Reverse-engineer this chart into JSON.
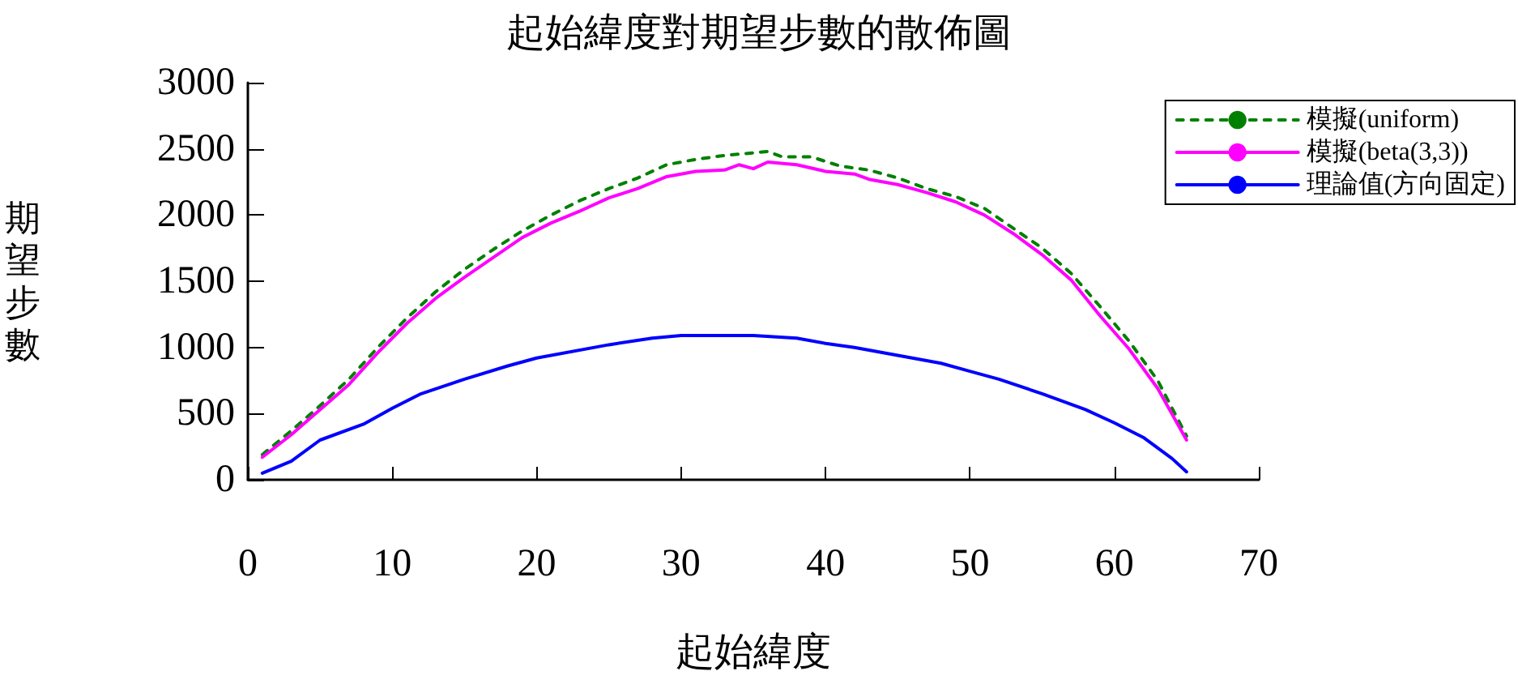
{
  "chart_data": {
    "type": "line",
    "title": "起始緯度對期望步數的散佈圖",
    "xlabel": "起始緯度",
    "ylabel": "期望步數",
    "xlim": [
      0,
      70
    ],
    "xticks": [
      0,
      10,
      20,
      30,
      40,
      50,
      60,
      70
    ],
    "ylim": [
      0,
      3000
    ],
    "yticks": [
      0,
      500,
      1000,
      1500,
      2000,
      2500,
      3000
    ],
    "grid": false,
    "legend": "top right",
    "marker": "none",
    "series": [
      {
        "name": "模擬(uniform)",
        "color": "#008000",
        "line_style": "dashed",
        "x": [
          1,
          3,
          5,
          7,
          9,
          11,
          13,
          15,
          17,
          19,
          21,
          23,
          25,
          27,
          29,
          31,
          33,
          35,
          36,
          37,
          39,
          41,
          43,
          45,
          47,
          49,
          51,
          53,
          55,
          57,
          59,
          61,
          63,
          65
        ],
        "values": [
          190,
          370,
          560,
          760,
          1000,
          1220,
          1420,
          1590,
          1740,
          1880,
          2000,
          2110,
          2200,
          2280,
          2380,
          2420,
          2450,
          2470,
          2480,
          2440,
          2440,
          2370,
          2340,
          2280,
          2200,
          2140,
          2050,
          1900,
          1750,
          1560,
          1310,
          1050,
          750,
          330
        ]
      },
      {
        "name": "模擬(beta(3,3))",
        "color": "#ff00ff",
        "line_style": "solid",
        "x": [
          1,
          3,
          5,
          7,
          9,
          11,
          13,
          15,
          17,
          19,
          21,
          23,
          25,
          27,
          29,
          31,
          33,
          34,
          35,
          36,
          38,
          40,
          42,
          43,
          45,
          47,
          49,
          51,
          53,
          55,
          57,
          59,
          61,
          63,
          65
        ],
        "values": [
          170,
          340,
          530,
          720,
          960,
          1180,
          1370,
          1530,
          1680,
          1830,
          1940,
          2030,
          2130,
          2200,
          2290,
          2330,
          2340,
          2380,
          2350,
          2400,
          2380,
          2330,
          2310,
          2270,
          2230,
          2170,
          2100,
          2000,
          1860,
          1700,
          1510,
          1240,
          990,
          690,
          300
        ]
      },
      {
        "name": "理論值(方向固定)",
        "color": "#0000ff",
        "line_style": "solid",
        "x": [
          1,
          3,
          5,
          8,
          10,
          12,
          15,
          18,
          20,
          25,
          28,
          30,
          35,
          38,
          40,
          42,
          45,
          48,
          50,
          52,
          55,
          58,
          60,
          62,
          64,
          65
        ],
        "values": [
          50,
          140,
          300,
          420,
          540,
          650,
          760,
          860,
          920,
          1020,
          1070,
          1090,
          1090,
          1070,
          1030,
          1000,
          940,
          880,
          820,
          760,
          650,
          530,
          430,
          320,
          160,
          60
        ]
      }
    ]
  }
}
